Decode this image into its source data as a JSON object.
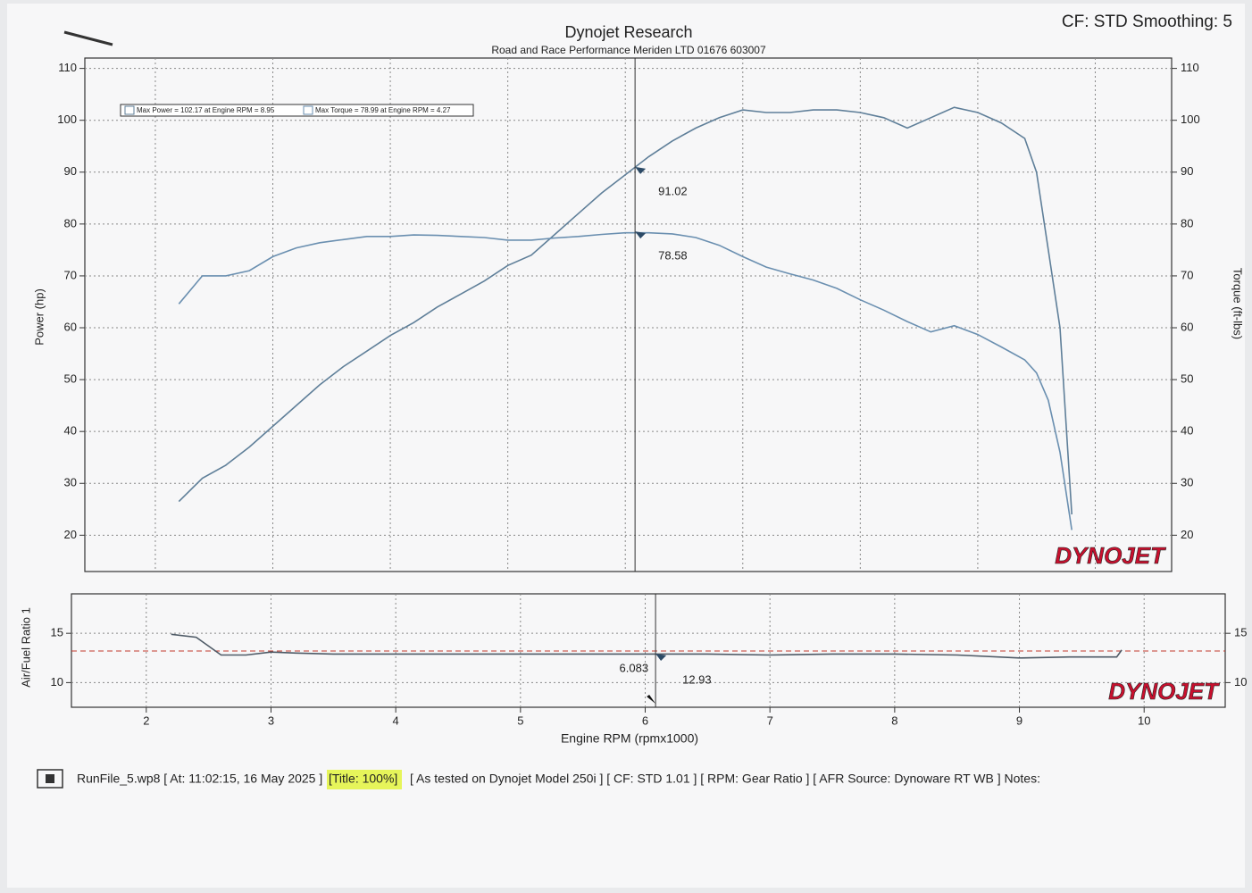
{
  "header": {
    "settings": "CF: STD Smoothing: 5"
  },
  "brand": "DYNOJET",
  "footer": {
    "file": "RunFile_5.wp8 [ At: 11:02:15, 16 May 2025 ]",
    "title_tag": "[Title: 100%]",
    "rest": "[ As tested on Dynojet Model 250i ] [ CF: STD 1.01 ] [ RPM: Gear Ratio ] [ AFR Source: Dynoware RT WB ] Notes:"
  },
  "chart_data": [
    {
      "type": "line",
      "title": "Dynojet Research",
      "subtitle": "Road and Race Performance Meriden LTD 01676 603007",
      "ylabel": "Power (hp)",
      "y2label": "Torque (ft-lbs)",
      "x": [
        2.2,
        2.4,
        2.6,
        2.8,
        3.0,
        3.2,
        3.4,
        3.6,
        3.8,
        4.0,
        4.2,
        4.4,
        4.6,
        4.8,
        5.0,
        5.2,
        5.4,
        5.6,
        5.8,
        6.0,
        6.2,
        6.4,
        6.6,
        6.8,
        7.0,
        7.2,
        7.4,
        7.6,
        7.8,
        8.0,
        8.2,
        8.4,
        8.6,
        8.8,
        9.0,
        9.2,
        9.4,
        9.5,
        9.6,
        9.7,
        9.8
      ],
      "series": [
        {
          "name": "Max Power = 102.17 at Engine RPM = 8.95",
          "color": "#5f7f99",
          "values": [
            26.5,
            31,
            33.5,
            37,
            41,
            45,
            49,
            52.5,
            55.5,
            58.5,
            61,
            64,
            66.5,
            69,
            72,
            74,
            78,
            82,
            86,
            89.5,
            93,
            96,
            98.5,
            100.5,
            102,
            101.5,
            101.5,
            102,
            102,
            101.5,
            100.5,
            98.5,
            100.5,
            102.5,
            101.5,
            99.5,
            96.5,
            90,
            75,
            60,
            24
          ]
        },
        {
          "name": "Max Torque = 78.99 at Engine RPM = 4.27",
          "color": "#6a8fb0",
          "axis": "y2",
          "values": [
            64.6,
            70,
            70,
            71,
            73.7,
            75.4,
            76.4,
            77,
            77.6,
            77.6,
            77.9,
            77.8,
            77.6,
            77.4,
            76.9,
            76.9,
            77.3,
            77.6,
            78,
            78.3,
            78.3,
            78.1,
            77.4,
            75.9,
            73.7,
            71.7,
            70.4,
            69.2,
            67.6,
            65.4,
            63.4,
            61.2,
            59.2,
            60.4,
            58.7,
            56.3,
            53.8,
            51.3,
            46,
            36,
            21
          ]
        }
      ],
      "cursor_values": [
        91.02,
        78.58
      ],
      "xlim": [
        1.4,
        10.65
      ],
      "ylim": [
        13,
        112
      ],
      "yticks": [
        20,
        30,
        40,
        50,
        60,
        70,
        80,
        90,
        100,
        110
      ],
      "y2lim": [
        13,
        112
      ],
      "y2ticks": [
        20,
        30,
        40,
        50,
        60,
        70,
        80,
        90,
        100,
        110
      ],
      "grid": true
    },
    {
      "type": "line",
      "ylabel": "Air/Fuel Ratio 1",
      "xlabel": "Engine RPM (rpmx1000)",
      "x": [
        2.2,
        2.4,
        2.6,
        2.8,
        3.0,
        3.2,
        3.5,
        4,
        4.5,
        5,
        5.5,
        6,
        6.5,
        7,
        7.5,
        8,
        8.5,
        9,
        9.4,
        9.78,
        9.82
      ],
      "series": [
        {
          "name": "Air/Fuel Ratio 1",
          "color": "#4e5a66",
          "values": [
            14.9,
            14.6,
            12.8,
            12.8,
            13.1,
            13.0,
            12.9,
            12.9,
            12.9,
            12.9,
            12.9,
            12.9,
            12.9,
            12.8,
            12.9,
            12.9,
            12.8,
            12.5,
            12.6,
            12.6,
            13.3
          ]
        }
      ],
      "reference_line": 13.2,
      "reference_color": "#c0392b",
      "cursor": {
        "x": 6.083,
        "value": 12.93
      },
      "xlim": [
        1.4,
        10.65
      ],
      "xticks": [
        2,
        3,
        4,
        5,
        6,
        7,
        8,
        9,
        10
      ],
      "ylim": [
        7.5,
        19
      ],
      "yticks": [
        10,
        15
      ],
      "y2lim": [
        7.5,
        19
      ],
      "y2ticks": [
        10,
        15
      ],
      "grid": true
    }
  ]
}
